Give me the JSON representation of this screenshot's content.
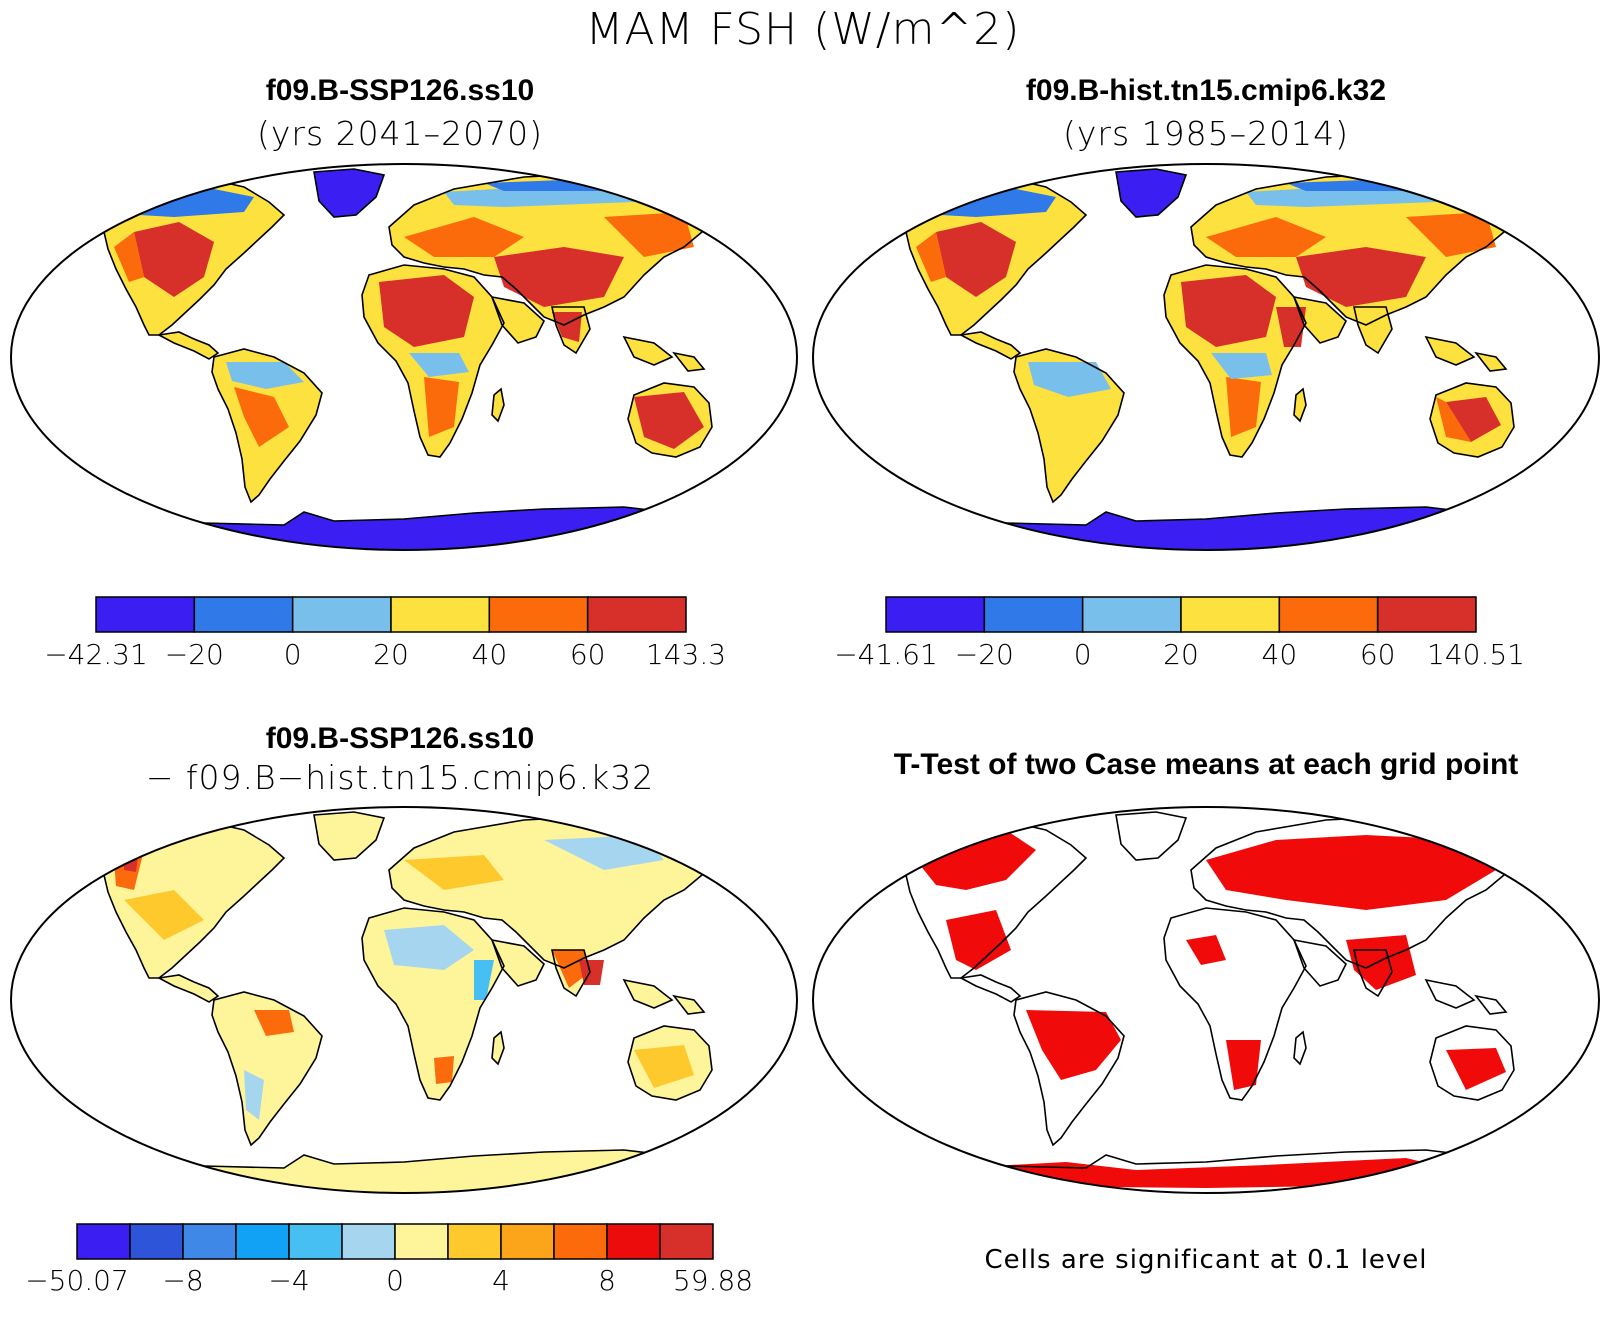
{
  "figure_title": "MAM FSH (W/m^2)",
  "colors": {
    "c1": "#3a1ef2",
    "c2": "#2f79e8",
    "c3": "#78bfeb",
    "c4": "#fde13f",
    "c5": "#fb6a0b",
    "c6": "#d7302b",
    "d1": "#3a1ef2",
    "d2": "#2e54d9",
    "d3": "#3f88e8",
    "d4": "#12a2f5",
    "d5": "#48bff2",
    "d6": "#a6d6ef",
    "d7": "#fef59a",
    "d8": "#fdc92c",
    "d9": "#fca51a",
    "d10": "#fb6a0b",
    "d11": "#ec0c0c",
    "d12": "#d7302b",
    "sig": "#f00a0a"
  },
  "panels": [
    {
      "id": "top-left",
      "title": "f09.B-SSP126.ss10",
      "subtitle": "(yrs 2041–2070)",
      "colorbar": {
        "colors": [
          "#3a1ef2",
          "#2f79e8",
          "#78bfeb",
          "#fde13f",
          "#fb6a0b",
          "#d7302b"
        ],
        "tick_labels": [
          "−42.31",
          "−20",
          "0",
          "20",
          "40",
          "60",
          "143.3"
        ]
      }
    },
    {
      "id": "top-right",
      "title": "f09.B-hist.tn15.cmip6.k32",
      "subtitle": "(yrs 1985–2014)",
      "colorbar": {
        "colors": [
          "#3a1ef2",
          "#2f79e8",
          "#78bfeb",
          "#fde13f",
          "#fb6a0b",
          "#d7302b"
        ],
        "tick_labels": [
          "−41.61",
          "−20",
          "0",
          "20",
          "40",
          "60",
          "140.51"
        ]
      }
    },
    {
      "id": "bottom-left",
      "title": "f09.B-SSP126.ss10",
      "subtitle": "− f09.B−hist.tn15.cmip6.k32",
      "colorbar": {
        "colors": [
          "#3a1ef2",
          "#2e54d9",
          "#3f88e8",
          "#12a2f5",
          "#48bff2",
          "#a6d6ef",
          "#fef59a",
          "#fdc92c",
          "#fca51a",
          "#fb6a0b",
          "#ec0c0c",
          "#d7302b"
        ],
        "tick_labels": [
          "−50.07",
          "−8",
          "−4",
          "0",
          "4",
          "8",
          "59.88"
        ]
      }
    },
    {
      "id": "bottom-right",
      "title": "T-Test of two Case means at each grid point",
      "note": "Cells are significant at 0.1 level"
    }
  ]
}
